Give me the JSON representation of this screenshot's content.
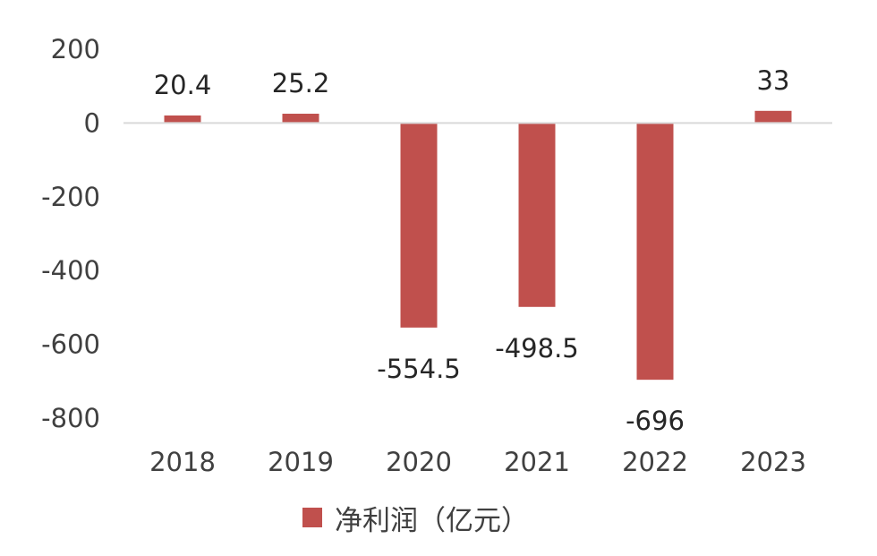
{
  "chart_data": {
    "type": "bar",
    "categories": [
      "2018",
      "2019",
      "2020",
      "2021",
      "2022",
      "2023"
    ],
    "series": [
      {
        "name": "净利润（亿元）",
        "values": [
          20.4,
          25.2,
          -554.5,
          -498.5,
          -696,
          33
        ],
        "data_labels": [
          "20.4",
          "25.2",
          "-554.5",
          "-498.5",
          "-696",
          "33"
        ],
        "color": "#c0504d"
      }
    ],
    "y_ticks": [
      200,
      0,
      -200,
      -400,
      -600,
      -800
    ],
    "ylim": [
      -800,
      200
    ],
    "grid": false,
    "legend_position": "bottom"
  }
}
